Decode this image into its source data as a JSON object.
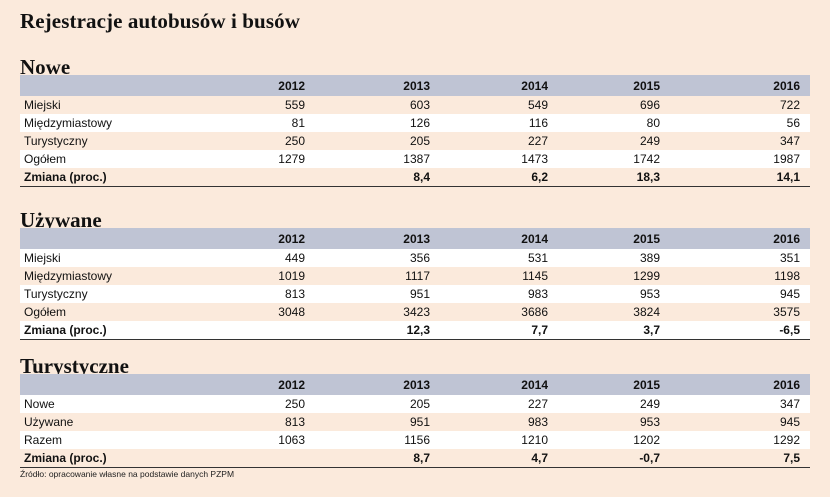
{
  "title": "Rejestracje autobusów i busów",
  "years": [
    "2012",
    "2013",
    "2014",
    "2015",
    "2016"
  ],
  "sections": [
    {
      "title": "Nowe",
      "rows": [
        {
          "label": "Miejski",
          "values": [
            "559",
            "603",
            "549",
            "696",
            "722"
          ]
        },
        {
          "label": "Międzymiastowy",
          "values": [
            "81",
            "126",
            "116",
            "80",
            "56"
          ]
        },
        {
          "label": "Turystyczny",
          "values": [
            "250",
            "205",
            "227",
            "249",
            "347"
          ]
        },
        {
          "label": "Ogółem",
          "values": [
            "1279",
            "1387",
            "1473",
            "1742",
            "1987"
          ]
        },
        {
          "label": "Zmiana (proc.)",
          "values": [
            "",
            "8,4",
            "6,2",
            "18,3",
            "14,1"
          ]
        }
      ]
    },
    {
      "title": "Używane",
      "rows": [
        {
          "label": "Miejski",
          "values": [
            "449",
            "356",
            "531",
            "389",
            "351"
          ]
        },
        {
          "label": "Międzymiastowy",
          "values": [
            "1019",
            "1117",
            "1145",
            "1299",
            "1198"
          ]
        },
        {
          "label": "Turystyczny",
          "values": [
            "813",
            "951",
            "983",
            "953",
            "945"
          ]
        },
        {
          "label": "Ogółem",
          "values": [
            "3048",
            "3423",
            "3686",
            "3824",
            "3575"
          ]
        },
        {
          "label": "Zmiana (proc.)",
          "values": [
            "",
            "12,3",
            "7,7",
            "3,7",
            "-6,5"
          ]
        }
      ]
    },
    {
      "title": "Turystyczne",
      "rows": [
        {
          "label": "Nowe",
          "values": [
            "250",
            "205",
            "227",
            "249",
            "347"
          ]
        },
        {
          "label": "Używane",
          "values": [
            "813",
            "951",
            "983",
            "953",
            "945"
          ]
        },
        {
          "label": "Razem",
          "values": [
            "1063",
            "1156",
            "1210",
            "1202",
            "1292"
          ]
        },
        {
          "label": "Zmiana (proc.)",
          "values": [
            "",
            "8,7",
            "4,7",
            "-0,7",
            "7,5"
          ]
        }
      ]
    }
  ],
  "source": "Źródło: opracowanie własne na podstawie danych PZPM"
}
